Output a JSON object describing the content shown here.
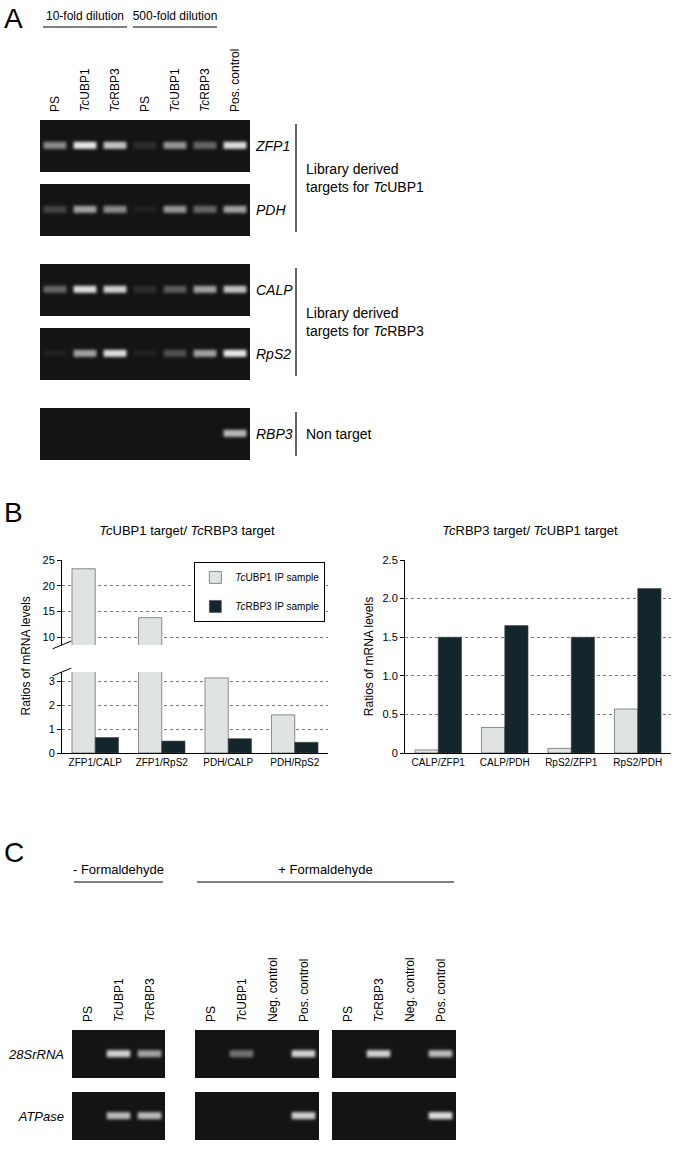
{
  "panel_A": {
    "letter": "A",
    "dilutions": [
      {
        "label": "10-fold dilution",
        "lanes": [
          "PS",
          "TcUBP1",
          "TcRBP3"
        ]
      },
      {
        "label": "500-fold dilution",
        "lanes": [
          "PS",
          "TcUBP1",
          "TcRBP3"
        ]
      }
    ],
    "control_lane": "Pos. control",
    "gels": [
      {
        "gene": "ZFP1",
        "bands": [
          0.5,
          0.9,
          0.75,
          0.1,
          0.55,
          0.35,
          0.85
        ]
      },
      {
        "gene": "PDH",
        "bands": [
          0.2,
          0.6,
          0.5,
          0.05,
          0.55,
          0.35,
          0.6
        ]
      },
      {
        "gene": "CALP",
        "bands": [
          0.35,
          0.85,
          0.8,
          0.1,
          0.3,
          0.6,
          0.75
        ]
      },
      {
        "gene": "RpS2",
        "bands": [
          0.05,
          0.6,
          0.85,
          0.05,
          0.25,
          0.6,
          0.9
        ]
      },
      {
        "gene": "RBP3",
        "bands": [
          0,
          0,
          0,
          0,
          0,
          0,
          0.7
        ]
      }
    ],
    "groups": [
      {
        "label": [
          "Library derived",
          "targets for TcUBP1"
        ],
        "genes": [
          "ZFP1",
          "PDH"
        ]
      },
      {
        "label": [
          "Library derived",
          "targets for TcRBP3"
        ],
        "genes": [
          "CALP",
          "RpS2"
        ]
      },
      {
        "label": [
          "Non target"
        ],
        "genes": [
          "RBP3"
        ]
      }
    ]
  },
  "panel_B": {
    "letter": "B"
  },
  "chart_data": [
    {
      "type": "bar",
      "title": "TcUBP1 target/ TcRBP3 target",
      "y_label": "Ratios of mRNA levels",
      "categories": [
        "ZFP1/CALP",
        "ZFP1/RpS2",
        "PDH/CALP",
        "PDH/RpS2"
      ],
      "series": [
        {
          "name": "TcUBP1 IP sample",
          "color": "#dfe4e3",
          "values": [
            23.3,
            13.8,
            3.15,
            1.6
          ]
        },
        {
          "name": "TcRBP3 IP sample",
          "color": "#15252c",
          "values": [
            0.65,
            0.5,
            0.6,
            0.45
          ]
        }
      ],
      "ylim": [
        0,
        25
      ],
      "yticks": [
        0,
        1,
        2,
        3,
        10,
        15,
        20,
        25
      ],
      "break": [
        3.4,
        8.5
      ],
      "grid": true,
      "legend": "upper right"
    },
    {
      "type": "bar",
      "title": "TcRBP3 target/ TcUBP1 target",
      "y_label": "Ratios of mRNA levels",
      "categories": [
        "CALP/ZFP1",
        "CALP/PDH",
        "RpS2/ZFP1",
        "RpS2/PDH"
      ],
      "series": [
        {
          "name": "TcUBP1 IP sample",
          "color": "#dfe4e3",
          "values": [
            0.04,
            0.33,
            0.06,
            0.57
          ]
        },
        {
          "name": "TcRBP3 IP sample",
          "color": "#15252c",
          "values": [
            1.5,
            1.65,
            1.5,
            2.13
          ]
        }
      ],
      "ylim": [
        0,
        2.5
      ],
      "yticks": [
        0,
        0.5,
        {
          "value": 1,
          "label": "1.0"
        },
        1.5,
        {
          "value": 2,
          "label": "2.0"
        },
        2.5
      ],
      "grid": true
    }
  ],
  "panel_C": {
    "letter": "C",
    "rows": [
      "28SrRNA",
      "ATPase"
    ],
    "conditions": [
      {
        "label": "- Formaldehyde",
        "gels": [
          {
            "lanes": [
              "PS",
              "TcUBP1",
              "TcRBP3"
            ],
            "bands": [
              [
                0,
                0.8,
                0.6
              ],
              [
                0,
                0.7,
                0.7
              ]
            ]
          }
        ]
      },
      {
        "label": "+ Formaldehyde",
        "gels": [
          {
            "lanes": [
              "PS",
              "TcUBP1",
              "Neg. control",
              "Pos. control"
            ],
            "bands": [
              [
                0,
                0.4,
                0,
                0.8
              ],
              [
                0,
                0,
                0,
                0.8
              ]
            ]
          },
          {
            "lanes": [
              "PS",
              "TcRBP3",
              "Neg. control",
              "Pos. control"
            ],
            "bands": [
              [
                0,
                0.8,
                0,
                0.7
              ],
              [
                0,
                0,
                0,
                0.85
              ]
            ]
          }
        ]
      }
    ]
  }
}
